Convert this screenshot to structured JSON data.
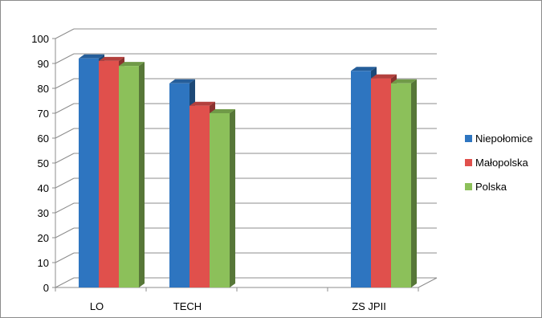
{
  "chart_data": {
    "type": "bar",
    "title": "",
    "xlabel": "",
    "ylabel": "",
    "categories": [
      "LO",
      "TECH",
      "",
      "ZS JPII"
    ],
    "series": [
      {
        "name": "Niepołomice",
        "color": "#2e75c0",
        "values": [
          92,
          82,
          null,
          87
        ]
      },
      {
        "name": "Małopolska",
        "color": "#e0504c",
        "values": [
          91,
          73,
          null,
          84
        ]
      },
      {
        "name": "Polska",
        "color": "#8cc05a",
        "values": [
          89,
          70,
          null,
          82
        ]
      }
    ],
    "ylim": [
      0,
      100
    ],
    "yticks": [
      0,
      10,
      20,
      30,
      40,
      50,
      60,
      70,
      80,
      90,
      100
    ],
    "grid": true,
    "legend": "right",
    "style": "3d-clustered-column"
  }
}
